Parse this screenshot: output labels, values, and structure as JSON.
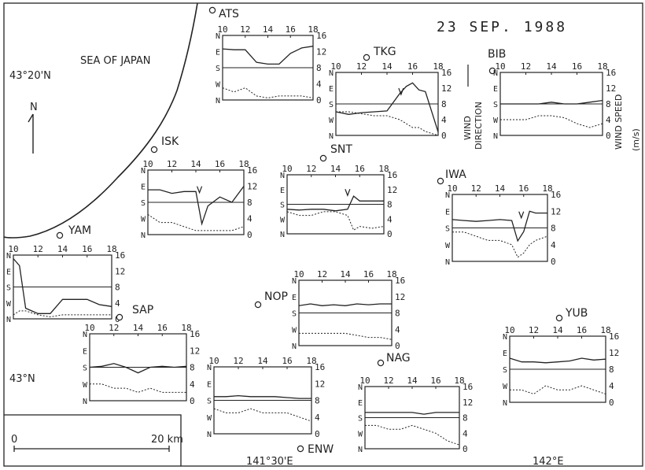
{
  "date": "23 SEP. 1988",
  "sea_label": "SEA OF JAPAN",
  "north_label": "N",
  "lat_labels": [
    "43°20'N",
    "43°N"
  ],
  "lon_labels": [
    "141°30'E",
    "142°E"
  ],
  "scale": {
    "start": "0",
    "end": "20 km"
  },
  "legend": {
    "direction_line1": "WIND",
    "direction_line2": "DIRECTION",
    "speed_line1": "WIND SPEED",
    "speed_line2": "(m/s)"
  },
  "x_ticks": [
    "10",
    "12",
    "14",
    "16",
    "18"
  ],
  "dir_ticks": [
    "N",
    "E",
    "S",
    "W",
    "N"
  ],
  "speed_ticks": [
    "16",
    "12",
    "8",
    "4",
    "0"
  ],
  "colors": {
    "ink": "#222222",
    "background": "#ffffff"
  },
  "chart_data": [
    {
      "type": "line",
      "station": "ATS",
      "x": [
        10,
        11,
        12,
        13,
        14,
        15,
        16,
        17,
        18
      ],
      "series": [
        {
          "name": "WIND DIRECTION",
          "values": [
            75,
            80,
            80,
            150,
            160,
            160,
            100,
            70,
            60
          ]
        },
        {
          "name": "WIND SPEED",
          "values": [
            3,
            2,
            3,
            1,
            0.5,
            1,
            1,
            1,
            0.5
          ]
        }
      ],
      "xlim": [
        10,
        18
      ],
      "ylim_direction": [
        "N",
        "N"
      ],
      "ylim_speed": [
        0,
        16
      ]
    },
    {
      "type": "line",
      "station": "TKG",
      "x": [
        10,
        11,
        12,
        13,
        14,
        15,
        15.5,
        16,
        16.5,
        17,
        18
      ],
      "series": [
        {
          "name": "WIND DIRECTION",
          "values": [
            225,
            240,
            230,
            225,
            220,
            120,
            80,
            60,
            100,
            110,
            340
          ]
        },
        {
          "name": "WIND SPEED",
          "values": [
            6,
            6,
            5.5,
            5,
            5,
            4,
            3,
            2,
            2,
            1,
            0
          ]
        }
      ],
      "xlim": [
        10,
        18
      ],
      "ylim_direction": [
        "N",
        "N"
      ],
      "ylim_speed": [
        0,
        16
      ]
    },
    {
      "type": "line",
      "station": "BIB",
      "x": [
        10,
        11,
        12,
        13,
        14,
        15,
        16,
        17,
        18
      ],
      "series": [
        {
          "name": "WIND DIRECTION",
          "values": [
            180,
            180,
            180,
            180,
            170,
            180,
            180,
            170,
            160
          ]
        },
        {
          "name": "WIND SPEED",
          "values": [
            4,
            4,
            4,
            5,
            5,
            4.5,
            3,
            2,
            3
          ]
        }
      ],
      "xlim": [
        10,
        18
      ],
      "ylim_direction": [
        "N",
        "N"
      ],
      "ylim_speed": [
        0,
        16
      ]
    },
    {
      "type": "line",
      "station": "ISK",
      "x": [
        10,
        11,
        12,
        13,
        14,
        14.5,
        15,
        16,
        17,
        18
      ],
      "series": [
        {
          "name": "WIND DIRECTION",
          "values": [
            110,
            110,
            130,
            120,
            120,
            300,
            200,
            150,
            180,
            90
          ]
        },
        {
          "name": "WIND SPEED",
          "values": [
            5,
            3,
            3,
            2,
            1,
            1,
            1,
            1,
            1,
            2
          ]
        }
      ],
      "xlim": [
        10,
        18
      ],
      "ylim_direction": [
        "N",
        "N"
      ],
      "ylim_speed": [
        0,
        16
      ]
    },
    {
      "type": "line",
      "station": "SNT",
      "x": [
        10,
        11,
        12,
        13,
        14,
        15,
        15.5,
        16,
        17,
        18
      ],
      "series": [
        {
          "name": "WIND DIRECTION",
          "values": [
            210,
            215,
            210,
            210,
            220,
            210,
            130,
            160,
            160,
            160
          ]
        },
        {
          "name": "WIND SPEED",
          "values": [
            6,
            5,
            5,
            6,
            6,
            5,
            1,
            2,
            1.5,
            2
          ]
        }
      ],
      "xlim": [
        10,
        18
      ],
      "ylim_direction": [
        "N",
        "N"
      ],
      "ylim_speed": [
        0,
        16
      ]
    },
    {
      "type": "line",
      "station": "IWA",
      "x": [
        10,
        11,
        12,
        13,
        14,
        15,
        15.5,
        16,
        16.5,
        17,
        18
      ],
      "series": [
        {
          "name": "WIND DIRECTION",
          "values": [
            135,
            140,
            145,
            140,
            135,
            140,
            250,
            200,
            90,
            100,
            100
          ]
        },
        {
          "name": "WIND SPEED",
          "values": [
            7,
            7,
            6,
            5,
            5,
            4,
            1,
            2,
            4,
            5,
            6
          ]
        }
      ],
      "xlim": [
        10,
        18
      ],
      "ylim_direction": [
        "N",
        "N"
      ],
      "ylim_speed": [
        0,
        16
      ]
    },
    {
      "type": "line",
      "station": "YAM",
      "x": [
        10,
        10.5,
        11,
        12,
        13,
        14,
        15,
        16,
        17,
        18
      ],
      "series": [
        {
          "name": "WIND DIRECTION",
          "values": [
            20,
            60,
            300,
            330,
            330,
            250,
            250,
            250,
            280,
            290
          ]
        },
        {
          "name": "WIND SPEED",
          "values": [
            1,
            2,
            2,
            1,
            0.5,
            1,
            1,
            1,
            1,
            1
          ]
        }
      ],
      "xlim": [
        10,
        18
      ],
      "ylim_direction": [
        "N",
        "N"
      ],
      "ylim_speed": [
        0,
        16
      ]
    },
    {
      "type": "line",
      "station": "NOP",
      "x": [
        10,
        11,
        12,
        13,
        14,
        15,
        16,
        17,
        18
      ],
      "series": [
        {
          "name": "WIND DIRECTION",
          "values": [
            140,
            130,
            140,
            135,
            140,
            130,
            135,
            130,
            130
          ]
        },
        {
          "name": "WIND SPEED",
          "values": [
            3,
            3,
            3,
            3,
            3,
            2.5,
            2,
            2,
            1.5
          ]
        }
      ],
      "xlim": [
        10,
        18
      ],
      "ylim_direction": [
        "N",
        "N"
      ],
      "ylim_speed": [
        0,
        16
      ]
    },
    {
      "type": "line",
      "station": "YUB",
      "x": [
        10,
        11,
        12,
        13,
        14,
        15,
        16,
        17,
        18
      ],
      "series": [
        {
          "name": "WIND DIRECTION",
          "values": [
            120,
            140,
            140,
            145,
            140,
            135,
            120,
            130,
            125
          ]
        },
        {
          "name": "WIND SPEED",
          "values": [
            3,
            3,
            2,
            4,
            3,
            3,
            4,
            3,
            2
          ]
        }
      ],
      "xlim": [
        10,
        18
      ],
      "ylim_direction": [
        "N",
        "N"
      ],
      "ylim_speed": [
        0,
        16
      ]
    },
    {
      "type": "line",
      "station": "SAP",
      "x": [
        10,
        11,
        12,
        13,
        14,
        15,
        16,
        17,
        18
      ],
      "series": [
        {
          "name": "WIND DIRECTION",
          "values": [
            180,
            175,
            160,
            180,
            210,
            180,
            175,
            180,
            175
          ]
        },
        {
          "name": "WIND SPEED",
          "values": [
            4,
            4,
            3,
            3,
            2,
            3,
            2,
            2,
            2
          ]
        }
      ],
      "xlim": [
        10,
        18
      ],
      "ylim_direction": [
        "N",
        "N"
      ],
      "ylim_speed": [
        0,
        16
      ]
    },
    {
      "type": "line",
      "station": "ENW",
      "x": [
        10,
        11,
        12,
        13,
        14,
        15,
        16,
        17,
        18
      ],
      "series": [
        {
          "name": "WIND DIRECTION",
          "values": [
            160,
            160,
            155,
            160,
            160,
            160,
            165,
            170,
            170
          ]
        },
        {
          "name": "WIND SPEED",
          "values": [
            6,
            5,
            5,
            6,
            5,
            5,
            5,
            4,
            3
          ]
        }
      ],
      "xlim": [
        10,
        18
      ],
      "ylim_direction": [
        "N",
        "N"
      ],
      "ylim_speed": [
        0,
        16
      ]
    },
    {
      "type": "line",
      "station": "NAG",
      "x": [
        10,
        11,
        12,
        13,
        14,
        15,
        16,
        17,
        18
      ],
      "series": [
        {
          "name": "WIND DIRECTION",
          "values": [
            150,
            150,
            150,
            150,
            150,
            160,
            150,
            150,
            150
          ]
        },
        {
          "name": "WIND SPEED",
          "values": [
            6,
            6,
            5,
            5,
            6,
            5,
            4,
            2,
            1
          ]
        }
      ],
      "xlim": [
        10,
        18
      ],
      "ylim_direction": [
        "N",
        "N"
      ],
      "ylim_speed": [
        0,
        16
      ]
    }
  ]
}
